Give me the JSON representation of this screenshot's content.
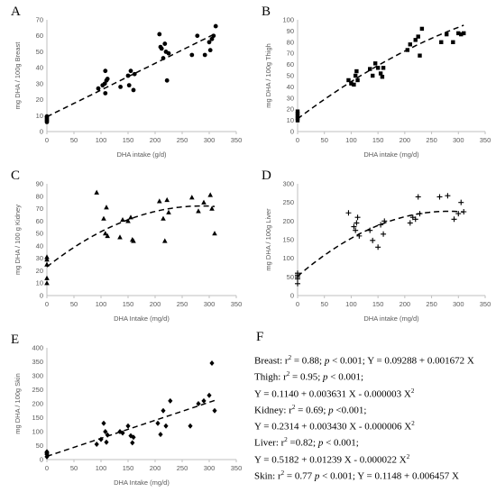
{
  "chart_data": [
    {
      "type": "scatter",
      "panel": "A",
      "xlabel": "DHA intake (g/d)",
      "ylabel": "mg DHA / 100g Breast",
      "xlim": [
        0,
        350
      ],
      "ylim": [
        0,
        70
      ],
      "xticks": [
        0,
        50,
        100,
        150,
        200,
        250,
        300,
        350
      ],
      "yticks": [
        0,
        10,
        20,
        30,
        40,
        50,
        60,
        70
      ],
      "marker": "circle",
      "fit": {
        "kind": "linear",
        "a": 0.09288,
        "b": 0.001672,
        "c": 0
      },
      "points": [
        [
          0,
          6
        ],
        [
          0,
          7
        ],
        [
          0,
          8
        ],
        [
          0,
          9
        ],
        [
          0,
          9.5
        ],
        [
          95,
          27
        ],
        [
          103,
          29
        ],
        [
          107,
          30
        ],
        [
          108,
          24
        ],
        [
          108,
          38
        ],
        [
          110,
          32
        ],
        [
          112,
          33
        ],
        [
          136,
          28
        ],
        [
          150,
          35
        ],
        [
          152,
          29
        ],
        [
          155,
          38
        ],
        [
          160,
          26
        ],
        [
          162,
          36
        ],
        [
          208,
          61
        ],
        [
          210,
          53
        ],
        [
          212,
          52
        ],
        [
          215,
          46
        ],
        [
          218,
          55
        ],
        [
          220,
          50
        ],
        [
          222,
          32
        ],
        [
          225,
          49
        ],
        [
          268,
          48
        ],
        [
          278,
          60
        ],
        [
          292,
          48
        ],
        [
          300,
          56
        ],
        [
          302,
          51
        ],
        [
          305,
          58
        ],
        [
          308,
          60
        ],
        [
          312,
          66
        ]
      ]
    },
    {
      "type": "scatter",
      "panel": "B",
      "xlabel": "DHA intake (mg/d)",
      "ylabel": "mg DHA / 100g Thigh",
      "xlim": [
        0,
        350
      ],
      "ylim": [
        0,
        100
      ],
      "xticks": [
        0,
        50,
        100,
        150,
        200,
        250,
        300,
        350
      ],
      "yticks": [
        0,
        10,
        20,
        30,
        40,
        50,
        60,
        70,
        80,
        90,
        100
      ],
      "marker": "square",
      "fit": {
        "kind": "quadratic",
        "a": 0.114,
        "b": 0.003631,
        "c": -3e-06
      },
      "points": [
        [
          0,
          10
        ],
        [
          0,
          12
        ],
        [
          0,
          14
        ],
        [
          0,
          16
        ],
        [
          0,
          18
        ],
        [
          95,
          46
        ],
        [
          100,
          43
        ],
        [
          105,
          42
        ],
        [
          108,
          50
        ],
        [
          110,
          54
        ],
        [
          112,
          46
        ],
        [
          135,
          56
        ],
        [
          140,
          50
        ],
        [
          145,
          61
        ],
        [
          150,
          57
        ],
        [
          155,
          52
        ],
        [
          158,
          49
        ],
        [
          160,
          57
        ],
        [
          205,
          73
        ],
        [
          210,
          78
        ],
        [
          220,
          82
        ],
        [
          225,
          85
        ],
        [
          228,
          68
        ],
        [
          232,
          92
        ],
        [
          268,
          80
        ],
        [
          278,
          87
        ],
        [
          290,
          80
        ],
        [
          300,
          88
        ],
        [
          305,
          87
        ],
        [
          310,
          88
        ]
      ]
    },
    {
      "type": "scatter",
      "panel": "C",
      "xlabel": "DHA Intake (mg/d)",
      "ylabel": "mg DHA / 100 g Kidney",
      "xlim": [
        0,
        350
      ],
      "ylim": [
        0,
        90
      ],
      "xticks": [
        0,
        50,
        100,
        150,
        200,
        250,
        300,
        350
      ],
      "yticks": [
        0,
        10,
        20,
        30,
        40,
        50,
        60,
        70,
        80,
        90
      ],
      "marker": "triangle",
      "fit": {
        "kind": "quadratic",
        "a": 0.2314,
        "b": 0.00343,
        "c": -6e-06
      },
      "points": [
        [
          0,
          10
        ],
        [
          0,
          14
        ],
        [
          0,
          25
        ],
        [
          0,
          29
        ],
        [
          0,
          31
        ],
        [
          92,
          83
        ],
        [
          105,
          62
        ],
        [
          108,
          50
        ],
        [
          110,
          71
        ],
        [
          112,
          48
        ],
        [
          135,
          47
        ],
        [
          140,
          61
        ],
        [
          150,
          60
        ],
        [
          155,
          63
        ],
        [
          158,
          45
        ],
        [
          160,
          44
        ],
        [
          208,
          76
        ],
        [
          215,
          62
        ],
        [
          218,
          44
        ],
        [
          222,
          77
        ],
        [
          225,
          67
        ],
        [
          268,
          79
        ],
        [
          280,
          68
        ],
        [
          290,
          75
        ],
        [
          302,
          81
        ],
        [
          305,
          70
        ],
        [
          310,
          50
        ]
      ]
    },
    {
      "type": "scatter",
      "panel": "D",
      "xlabel": "DHA intake (mg/d)",
      "ylabel": "mg DHA / 100g Liver",
      "xlim": [
        0,
        350
      ],
      "ylim": [
        0,
        300
      ],
      "xticks": [
        0,
        50,
        100,
        150,
        200,
        250,
        300,
        350
      ],
      "yticks": [
        0,
        50,
        100,
        150,
        200,
        250,
        300
      ],
      "marker": "plus",
      "fit": {
        "kind": "quadratic",
        "a": 0.5182,
        "b": 0.01239,
        "c": -2.2e-05
      },
      "points": [
        [
          0,
          32
        ],
        [
          0,
          45
        ],
        [
          0,
          50
        ],
        [
          0,
          55
        ],
        [
          0,
          60
        ],
        [
          95,
          222
        ],
        [
          105,
          185
        ],
        [
          108,
          175
        ],
        [
          110,
          195
        ],
        [
          112,
          210
        ],
        [
          115,
          160
        ],
        [
          135,
          175
        ],
        [
          140,
          148
        ],
        [
          150,
          130
        ],
        [
          155,
          190
        ],
        [
          160,
          165
        ],
        [
          162,
          200
        ],
        [
          210,
          195
        ],
        [
          215,
          210
        ],
        [
          220,
          205
        ],
        [
          225,
          265
        ],
        [
          228,
          220
        ],
        [
          265,
          265
        ],
        [
          280,
          268
        ],
        [
          292,
          205
        ],
        [
          300,
          220
        ],
        [
          305,
          250
        ],
        [
          310,
          225
        ]
      ]
    },
    {
      "type": "scatter",
      "panel": "E",
      "xlabel": "DHA Intake (mg/d)",
      "ylabel": "mg DHA / 100g Skin",
      "xlim": [
        0,
        350
      ],
      "ylim": [
        0,
        400
      ],
      "xticks": [
        0,
        50,
        100,
        150,
        200,
        250,
        300,
        350
      ],
      "yticks": [
        0,
        50,
        100,
        150,
        200,
        250,
        300,
        350,
        400
      ],
      "marker": "diamond",
      "fit": {
        "kind": "linear",
        "a": 0.1148,
        "b": 0.006457,
        "c": 0
      },
      "points": [
        [
          0,
          10
        ],
        [
          0,
          18
        ],
        [
          0,
          22
        ],
        [
          0,
          25
        ],
        [
          0,
          28
        ],
        [
          92,
          55
        ],
        [
          100,
          72
        ],
        [
          105,
          130
        ],
        [
          108,
          100
        ],
        [
          110,
          62
        ],
        [
          112,
          88
        ],
        [
          135,
          100
        ],
        [
          140,
          95
        ],
        [
          150,
          120
        ],
        [
          155,
          85
        ],
        [
          158,
          60
        ],
        [
          160,
          80
        ],
        [
          205,
          130
        ],
        [
          210,
          90
        ],
        [
          215,
          175
        ],
        [
          220,
          120
        ],
        [
          228,
          210
        ],
        [
          265,
          120
        ],
        [
          280,
          200
        ],
        [
          290,
          210
        ],
        [
          300,
          230
        ],
        [
          305,
          345
        ],
        [
          310,
          175
        ]
      ]
    }
  ],
  "panel_f": {
    "label": "F",
    "lines": [
      "Breast: r² = 0.88; p < 0.001; Y = 0.09288 + 0.001672 X",
      "Thigh:  r² = 0.95; p < 0.001;",
      "Y = 0.1140 + 0.003631 X - 0.000003 X²",
      "Kidney: r² = 0.69; p <0.001;",
      "Y = 0.2314 + 0.003430 X - 0.000006 X²",
      "Liver: r² =0.82; p < 0.001;",
      "Y = 0.5182 + 0.01239 X - 0.000022 X²",
      "Skin: r² = 0.77 p < 0.001; Y = 0.1148 + 0.006457 X"
    ]
  }
}
